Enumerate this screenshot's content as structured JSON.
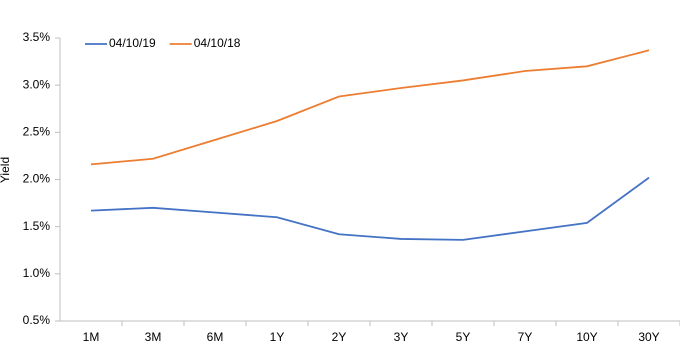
{
  "chart_data": {
    "type": "line",
    "y_label": "Yield",
    "categories": [
      "1M",
      "3M",
      "6M",
      "1Y",
      "2Y",
      "3Y",
      "5Y",
      "7Y",
      "10Y",
      "30Y"
    ],
    "series": [
      {
        "name": "04/10/19",
        "color": "#4472c4",
        "values": [
          1.67,
          1.7,
          1.65,
          1.6,
          1.42,
          1.37,
          1.36,
          1.45,
          1.54,
          2.02
        ]
      },
      {
        "name": "04/10/18",
        "color": "#ed7d31",
        "values": [
          2.16,
          2.22,
          2.42,
          2.62,
          2.88,
          2.97,
          3.05,
          3.15,
          3.2,
          3.37
        ]
      }
    ],
    "ylim": [
      0.5,
      3.5
    ],
    "yticks": [
      {
        "value": 0.5,
        "label": "0.5%"
      },
      {
        "value": 1.0,
        "label": "1.0%"
      },
      {
        "value": 1.5,
        "label": "1.5%"
      },
      {
        "value": 2.0,
        "label": "2.0%"
      },
      {
        "value": 2.5,
        "label": "2.5%"
      },
      {
        "value": 3.0,
        "label": "3.0%"
      },
      {
        "value": 3.5,
        "label": "3.5%"
      }
    ],
    "legend": "top-left"
  }
}
